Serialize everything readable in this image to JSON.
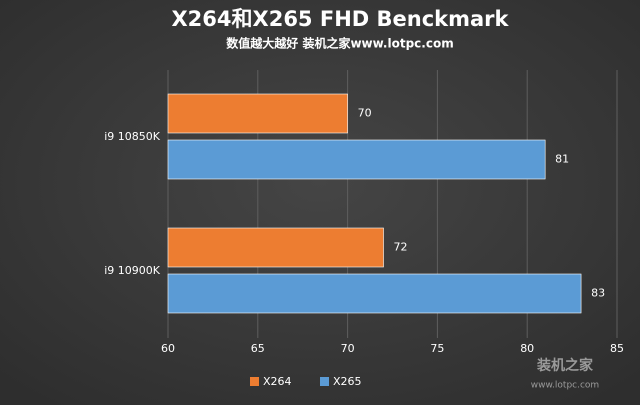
{
  "chart_data": {
    "type": "bar",
    "orientation": "horizontal",
    "title": "X264和X265 FHD Benckmark",
    "subtitle": "数值越大越好 装机之家www.lotpc.com",
    "categories": [
      "i9 10850K",
      "i9 10900K"
    ],
    "series": [
      {
        "name": "X264",
        "color": "#ed7d31",
        "values": [
          70,
          72
        ]
      },
      {
        "name": "X265",
        "color": "#5b9bd5",
        "values": [
          81,
          83
        ]
      }
    ],
    "xlim": [
      60,
      85
    ],
    "xticks": [
      60,
      65,
      70,
      75,
      80,
      85
    ],
    "grid": true,
    "legend": "bottom",
    "watermark": {
      "name": "装机之家",
      "url": "www.lotpc.com"
    }
  }
}
